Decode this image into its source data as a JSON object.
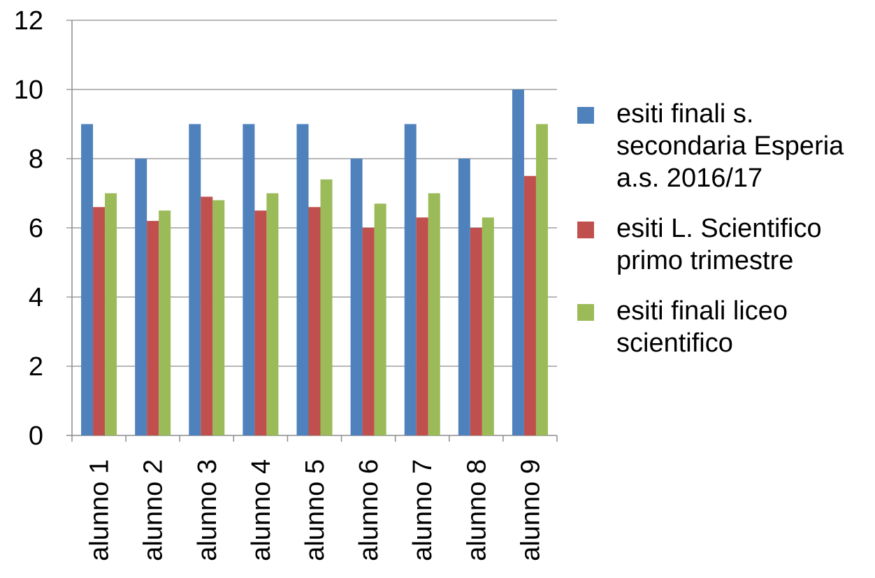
{
  "chart_data": {
    "type": "bar",
    "title": "",
    "xlabel": "",
    "ylabel": "",
    "ylim": [
      0,
      12
    ],
    "yticks": [
      "0",
      "2",
      "4",
      "6",
      "8",
      "10",
      "12"
    ],
    "grid": "horizontal",
    "legend_position": "right",
    "categories": [
      "alunno 1",
      "alunno 2",
      "alunno 3",
      "alunno 4",
      "alunno 5",
      "alunno 6",
      "alunno 7",
      "alunno 8",
      "alunno 9"
    ],
    "series": [
      {
        "name": "esiti finali s. secondaria Esperia a.s. 2016/17",
        "color": "#4F81BD",
        "values": [
          9,
          8,
          9,
          9,
          9,
          8,
          9,
          8,
          10
        ]
      },
      {
        "name": "esiti L. Scientifico primo trimestre",
        "color": "#C0504D",
        "values": [
          6.6,
          6.2,
          6.9,
          6.5,
          6.6,
          6.0,
          6.3,
          6.0,
          7.5
        ]
      },
      {
        "name": "esiti finali liceo scientifico",
        "color": "#9BBB59",
        "values": [
          7.0,
          6.5,
          6.8,
          7.0,
          7.4,
          6.7,
          7.0,
          6.3,
          9.0
        ]
      }
    ]
  }
}
